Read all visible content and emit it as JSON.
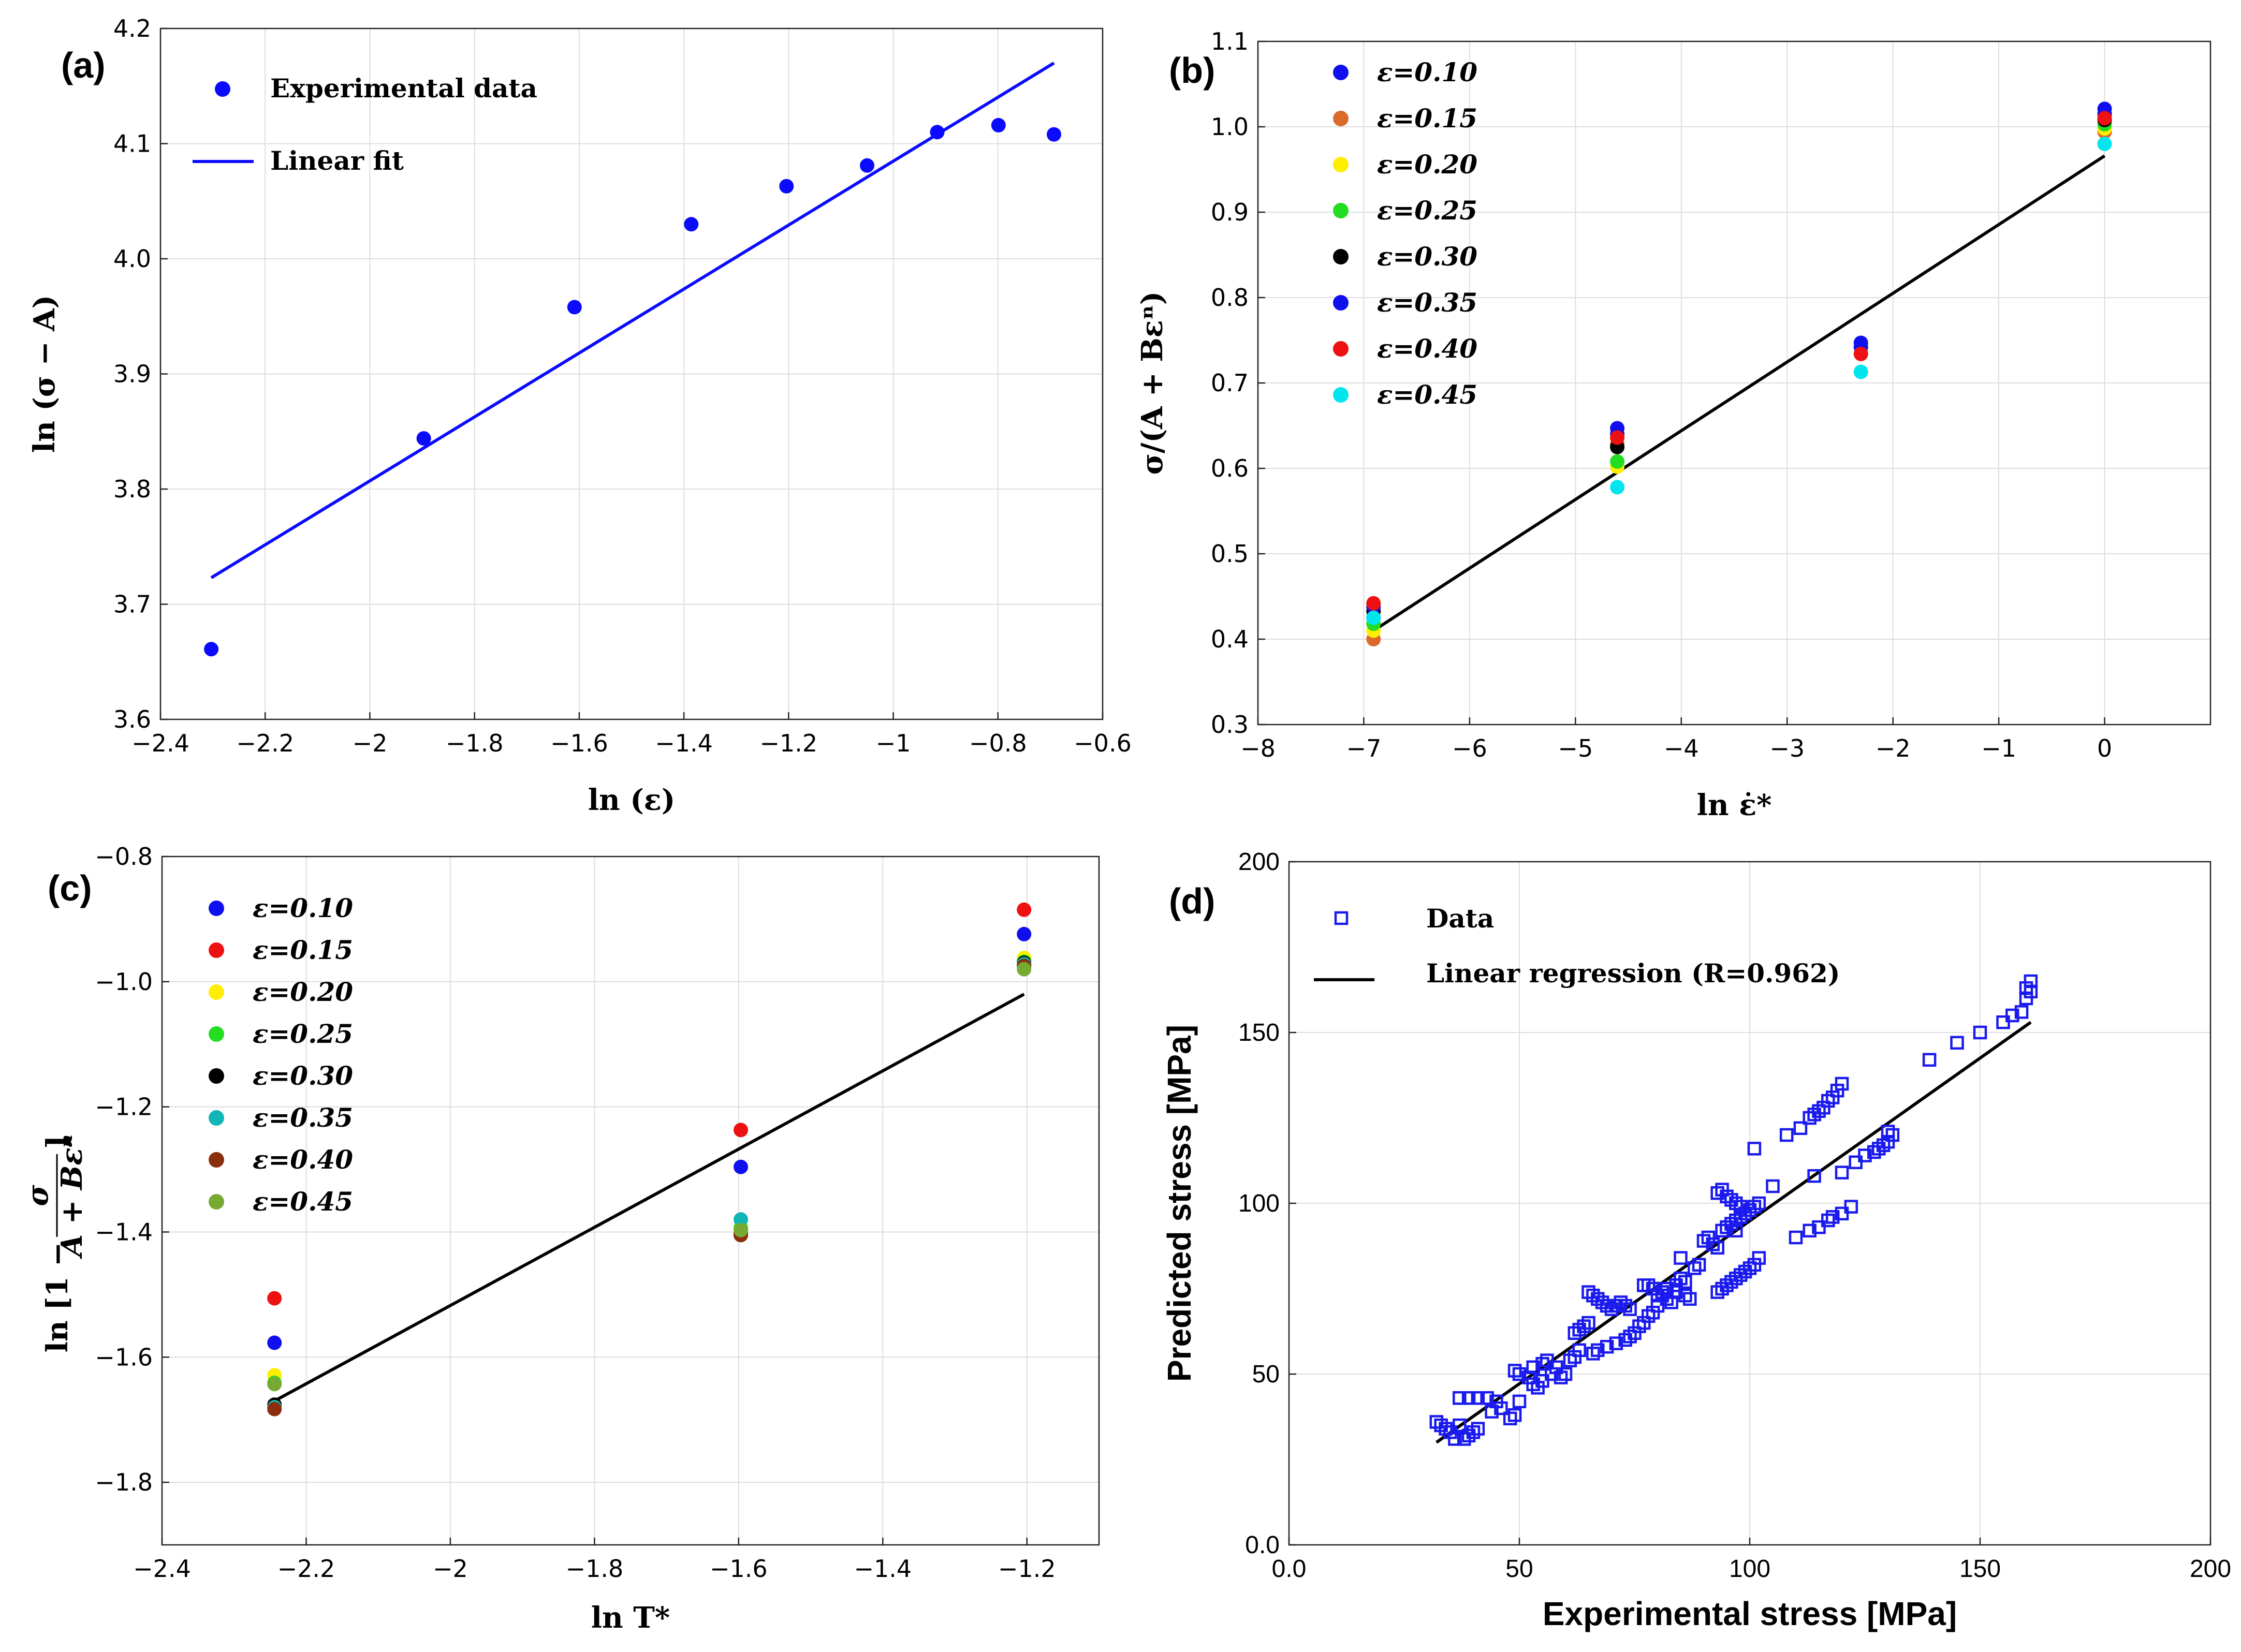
{
  "figure": {
    "panels": [
      "(a)",
      "(b)",
      "(c)",
      "(d)"
    ]
  },
  "chart_data": [
    {
      "id": "a",
      "type": "scatter",
      "label": "(a)",
      "title": "",
      "xlabel": "ln (ε)",
      "ylabel": "ln (σ − A)",
      "xlim": [
        -2.4,
        -0.6
      ],
      "ylim": [
        3.6,
        4.2
      ],
      "xticks": [
        -2.4,
        -2.2,
        -2,
        -1.8,
        -1.6,
        -1.4,
        -1.2,
        -1,
        -0.8,
        -0.6
      ],
      "xtick_labels": [
        "−2.4",
        "−2.2",
        "−2",
        "−1.8",
        "−1.6",
        "−1.4",
        "−1.2",
        "−1",
        "−0.8",
        "−0.6"
      ],
      "yticks": [
        3.6,
        3.7,
        3.8,
        3.9,
        4.0,
        4.1,
        4.2
      ],
      "ytick_labels": [
        "3.6",
        "3.7",
        "3.8",
        "3.9",
        "4.0",
        "4.1",
        "4.2"
      ],
      "legend_position": "top-left",
      "series": [
        {
          "name": "Experimental data",
          "kind": "points",
          "color": "#0a0aff",
          "x": [
            -2.303,
            -1.897,
            -1.609,
            -1.386,
            -1.204,
            -1.05,
            -0.916,
            -0.799,
            -0.693
          ],
          "y": [
            3.661,
            3.844,
            3.958,
            4.03,
            4.063,
            4.081,
            4.11,
            4.116,
            4.108
          ]
        },
        {
          "name": "Linear fit",
          "kind": "line",
          "color": "#0a0aff",
          "x": [
            -2.303,
            -0.693
          ],
          "y": [
            3.723,
            4.17
          ]
        }
      ]
    },
    {
      "id": "b",
      "type": "scatter",
      "label": "(b)",
      "title": "",
      "xlabel": "ln ε̇*",
      "ylabel": "σ/(A + Bεⁿ)",
      "xlim": [
        -8,
        1
      ],
      "ylim": [
        0.3,
        1.1
      ],
      "xticks": [
        -8,
        -7,
        -6,
        -5,
        -4,
        -3,
        -2,
        -1,
        0
      ],
      "xtick_labels": [
        "−8",
        "−7",
        "−6",
        "−5",
        "−4",
        "−3",
        "−2",
        "−1",
        "0"
      ],
      "yticks": [
        0.3,
        0.4,
        0.5,
        0.6,
        0.7,
        0.8,
        0.9,
        1.0,
        1.1
      ],
      "ytick_labels": [
        "0.3",
        "0.4",
        "0.5",
        "0.6",
        "0.7",
        "0.8",
        "0.9",
        "1.0",
        "1.1"
      ],
      "legend_position": "top-left",
      "x": [
        -6.908,
        -4.605,
        -2.303,
        0
      ],
      "series": [
        {
          "name": "ε=0.10",
          "color": "#1010ee",
          "values": [
            0.425,
            0.647,
            0.747,
            1.021
          ]
        },
        {
          "name": "ε=0.15",
          "color": "#d96a2b",
          "values": [
            0.4,
            0.628,
            null,
            0.994
          ]
        },
        {
          "name": "ε=0.20",
          "color": "#ffee00",
          "values": [
            0.41,
            0.602,
            null,
            0.998
          ]
        },
        {
          "name": "ε=0.25",
          "color": "#22dd22",
          "values": [
            0.418,
            0.608,
            null,
            1.003
          ]
        },
        {
          "name": "ε=0.30",
          "color": "#000000",
          "values": [
            0.433,
            0.625,
            null,
            1.008
          ]
        },
        {
          "name": "ε=0.35",
          "color": "#1010ee",
          "values": [
            0.438,
            0.64,
            0.742,
            1.015
          ]
        },
        {
          "name": "ε=0.40",
          "color": "#ee1111",
          "values": [
            0.442,
            0.636,
            0.734,
            1.01
          ]
        },
        {
          "name": "ε=0.45",
          "color": "#00e5ee",
          "values": [
            0.425,
            0.578,
            0.713,
            0.98
          ]
        }
      ],
      "fit": {
        "name": "fit",
        "color": "#000000",
        "x": [
          -6.908,
          0
        ],
        "y": [
          0.41,
          0.966
        ]
      }
    },
    {
      "id": "c",
      "type": "scatter",
      "label": "(c)",
      "title": "",
      "xlabel": "ln  T*",
      "ylabel": "ln [1 − σ/(A + Bεⁿ)]",
      "ylabel_num": "σ",
      "ylabel_den": "A + Bεⁿ",
      "xlim": [
        -2.4,
        -1.1
      ],
      "ylim": [
        -1.9,
        -0.8
      ],
      "xticks": [
        -2.4,
        -2.2,
        -2,
        -1.8,
        -1.6,
        -1.4,
        -1.2
      ],
      "xtick_labels": [
        "−2.4",
        "−2.2",
        "−2",
        "−1.8",
        "−1.6",
        "−1.4",
        "−1.2"
      ],
      "yticks": [
        -1.8,
        -1.6,
        -1.4,
        -1.2,
        -1.0,
        -0.8
      ],
      "ytick_labels": [
        "−1.8",
        "−1.6",
        "−1.4",
        "−1.2",
        "−1.0",
        "−0.8"
      ],
      "legend_position": "top-left",
      "x": [
        -2.244,
        -1.597,
        -1.204
      ],
      "series": [
        {
          "name": "ε=0.10",
          "color": "#1010ee",
          "values": [
            -1.577,
            -1.296,
            -0.924
          ]
        },
        {
          "name": "ε=0.15",
          "color": "#ee1111",
          "values": [
            -1.506,
            -1.237,
            -0.885
          ]
        },
        {
          "name": "ε=0.20",
          "color": "#ffee00",
          "values": [
            -1.629,
            -1.393,
            -0.962
          ]
        },
        {
          "name": "ε=0.25",
          "color": "#22dd22",
          "values": [
            -1.641,
            -1.394,
            -0.968
          ]
        },
        {
          "name": "ε=0.30",
          "color": "#000000",
          "values": [
            -1.676,
            -1.403,
            -0.97
          ]
        },
        {
          "name": "ε=0.35",
          "color": "#10b5b5",
          "values": [
            -1.68,
            -1.38,
            -0.972
          ]
        },
        {
          "name": "ε=0.40",
          "color": "#8b2e0e",
          "values": [
            -1.683,
            -1.405,
            -0.975
          ]
        },
        {
          "name": "ε=0.45",
          "color": "#77aa33",
          "values": [
            -1.643,
            -1.397,
            -0.98
          ]
        }
      ],
      "fit": {
        "name": "fit",
        "color": "#000000",
        "x": [
          -2.244,
          -1.204
        ],
        "y": [
          -1.67,
          -1.02
        ]
      }
    },
    {
      "id": "d",
      "type": "scatter",
      "label": "(d)",
      "title": "",
      "xlabel": "Experimental stress [MPa]",
      "ylabel": "Predicted stress [MPa]",
      "xlim": [
        0,
        200
      ],
      "ylim": [
        0,
        200
      ],
      "xticks": [
        0,
        50,
        100,
        150,
        200
      ],
      "xtick_labels": [
        "0.0",
        "50",
        "100",
        "150",
        "200"
      ],
      "yticks": [
        0,
        50,
        100,
        150,
        200
      ],
      "ytick_labels": [
        "0.0",
        "50",
        "100",
        "150",
        "200"
      ],
      "legend_position": "top-left",
      "series": [
        {
          "name": "Data",
          "kind": "open-square",
          "color": "#1a1aee",
          "points": [
            [
              32,
              36
            ],
            [
              33,
              35
            ],
            [
              34,
              34
            ],
            [
              35,
              33
            ],
            [
              36,
              31
            ],
            [
              37,
              35
            ],
            [
              38,
              31
            ],
            [
              39,
              32
            ],
            [
              40,
              33
            ],
            [
              41,
              34
            ],
            [
              37,
              43
            ],
            [
              39,
              43
            ],
            [
              41,
              43
            ],
            [
              43,
              43
            ],
            [
              45,
              42
            ],
            [
              44,
              39
            ],
            [
              46,
              40
            ],
            [
              48,
              37
            ],
            [
              49,
              38
            ],
            [
              50,
              42
            ],
            [
              49,
              51
            ],
            [
              50,
              50
            ],
            [
              52,
              49
            ],
            [
              53,
              47
            ],
            [
              54,
              46
            ],
            [
              55,
              48
            ],
            [
              53,
              52
            ],
            [
              55,
              53
            ],
            [
              56,
              54
            ],
            [
              57,
              50
            ],
            [
              58,
              52
            ],
            [
              59,
              49
            ],
            [
              60,
              50
            ],
            [
              61,
              54
            ],
            [
              62,
              55
            ],
            [
              63,
              57
            ],
            [
              62,
              62
            ],
            [
              63,
              63
            ],
            [
              64,
              64
            ],
            [
              65,
              65
            ],
            [
              65,
              74
            ],
            [
              66,
              73
            ],
            [
              67,
              72
            ],
            [
              68,
              71
            ],
            [
              69,
              70
            ],
            [
              70,
              69
            ],
            [
              71,
              70
            ],
            [
              72,
              71
            ],
            [
              73,
              70
            ],
            [
              74,
              69
            ],
            [
              66,
              56
            ],
            [
              67,
              57
            ],
            [
              69,
              58
            ],
            [
              71,
              59
            ],
            [
              73,
              60
            ],
            [
              74,
              61
            ],
            [
              75,
              62
            ],
            [
              76,
              64
            ],
            [
              77,
              65
            ],
            [
              78,
              67
            ],
            [
              77,
              76
            ],
            [
              78,
              76
            ],
            [
              79,
              75
            ],
            [
              80,
              73
            ],
            [
              81,
              74
            ],
            [
              82,
              72
            ],
            [
              83,
              71
            ],
            [
              84,
              76
            ],
            [
              85,
              78
            ],
            [
              86,
              77
            ],
            [
              79,
              68
            ],
            [
              80,
              70
            ],
            [
              81,
              73
            ],
            [
              82,
              75
            ],
            [
              84,
              74
            ],
            [
              86,
              73
            ],
            [
              87,
              72
            ],
            [
              85,
              84
            ],
            [
              88,
              81
            ],
            [
              89,
              82
            ],
            [
              90,
              89
            ],
            [
              91,
              90
            ],
            [
              92,
              88
            ],
            [
              93,
              87
            ],
            [
              94,
              92
            ],
            [
              95,
              93
            ],
            [
              96,
              94
            ],
            [
              97,
              95
            ],
            [
              98,
              96
            ],
            [
              97,
              92
            ],
            [
              93,
              103
            ],
            [
              94,
              104
            ],
            [
              95,
              102
            ],
            [
              96,
              101
            ],
            [
              97,
              100
            ],
            [
              98,
              99
            ],
            [
              99,
              97
            ],
            [
              100,
              98
            ],
            [
              101,
              99
            ],
            [
              102,
              100
            ],
            [
              93,
              74
            ],
            [
              94,
              75
            ],
            [
              95,
              76
            ],
            [
              96,
              77
            ],
            [
              97,
              78
            ],
            [
              98,
              79
            ],
            [
              99,
              80
            ],
            [
              100,
              81
            ],
            [
              101,
              82
            ],
            [
              102,
              84
            ],
            [
              101,
              116
            ],
            [
              105,
              105
            ],
            [
              108,
              120
            ],
            [
              111,
              122
            ],
            [
              113,
              125
            ],
            [
              114,
              126
            ],
            [
              115,
              127
            ],
            [
              116,
              128
            ],
            [
              117,
              130
            ],
            [
              118,
              131
            ],
            [
              119,
              133
            ],
            [
              120,
              135
            ],
            [
              110,
              90
            ],
            [
              113,
              92
            ],
            [
              115,
              93
            ],
            [
              117,
              95
            ],
            [
              118,
              96
            ],
            [
              120,
              97
            ],
            [
              122,
              99
            ],
            [
              114,
              108
            ],
            [
              120,
              109
            ],
            [
              123,
              112
            ],
            [
              125,
              114
            ],
            [
              127,
              115
            ],
            [
              128,
              116
            ],
            [
              129,
              117
            ],
            [
              130,
              118
            ],
            [
              131,
              120
            ],
            [
              130,
              121
            ],
            [
              139,
              142
            ],
            [
              145,
              147
            ],
            [
              150,
              150
            ],
            [
              155,
              153
            ],
            [
              157,
              155
            ],
            [
              159,
              156
            ],
            [
              160,
              160
            ],
            [
              161,
              162
            ],
            [
              160,
              163
            ],
            [
              161,
              165
            ]
          ]
        },
        {
          "name": "Linear regression (R=0.962)",
          "kind": "line",
          "color": "#000000",
          "x": [
            32,
            161
          ],
          "y": [
            30,
            153
          ]
        }
      ]
    }
  ]
}
